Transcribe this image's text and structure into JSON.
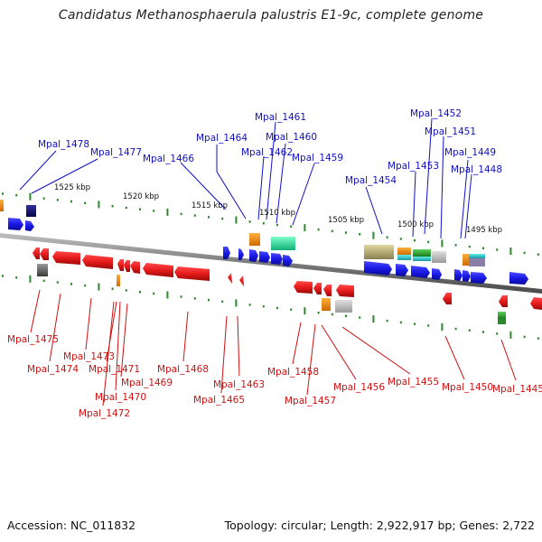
{
  "title": "Candidatus Methanosphaerula palustris E1-9c, complete genome",
  "footer": {
    "accession": "Accession: NC_011832",
    "summary": "Topology: circular; Length: 2,922,917 bp; Genes: 2,722"
  },
  "colors": {
    "forward_label": "#1010c8",
    "reverse_label": "#d01010",
    "backbone": "#8a8a8a",
    "tick": "#2a8a2a"
  },
  "kbp_labels": [
    "1525 kbp",
    "1520 kbp",
    "1515 kbp",
    "1510 kbp",
    "1505 kbp",
    "1500 kbp",
    "1495 kbp"
  ],
  "forward_genes": [
    "Mpal_1478",
    "Mpal_1477",
    "Mpal_1466",
    "Mpal_1464",
    "Mpal_1462",
    "Mpal_1461",
    "Mpal_1460",
    "Mpal_1459",
    "Mpal_1454",
    "Mpal_1453",
    "Mpal_1452",
    "Mpal_1451",
    "Mpal_1449",
    "Mpal_1448"
  ],
  "reverse_genes": [
    "Mpal_1475",
    "Mpal_1474",
    "Mpal_1473",
    "Mpal_1471",
    "Mpal_1470",
    "Mpal_1472",
    "Mpal_1469",
    "Mpal_1468",
    "Mpal_1465",
    "Mpal_1463",
    "Mpal_1458",
    "Mpal_1457",
    "Mpal_1456",
    "Mpal_1455",
    "Mpal_1450",
    "Mpal_1445"
  ]
}
